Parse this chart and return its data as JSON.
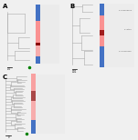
{
  "panels": [
    "A",
    "B",
    "C"
  ],
  "bg_color": "#f0f0f0",
  "panel_bg": "#ffffff",
  "tree_line_color": "#aaaaaa",
  "bar_colors": {
    "top_blue": "#4472c4",
    "pink_red": "#ff6b6b",
    "dark_red": "#8b0000",
    "bottom_blue": "#4472c4"
  },
  "label_fontsize": 2.5,
  "panel_label_fontsize": 5
}
